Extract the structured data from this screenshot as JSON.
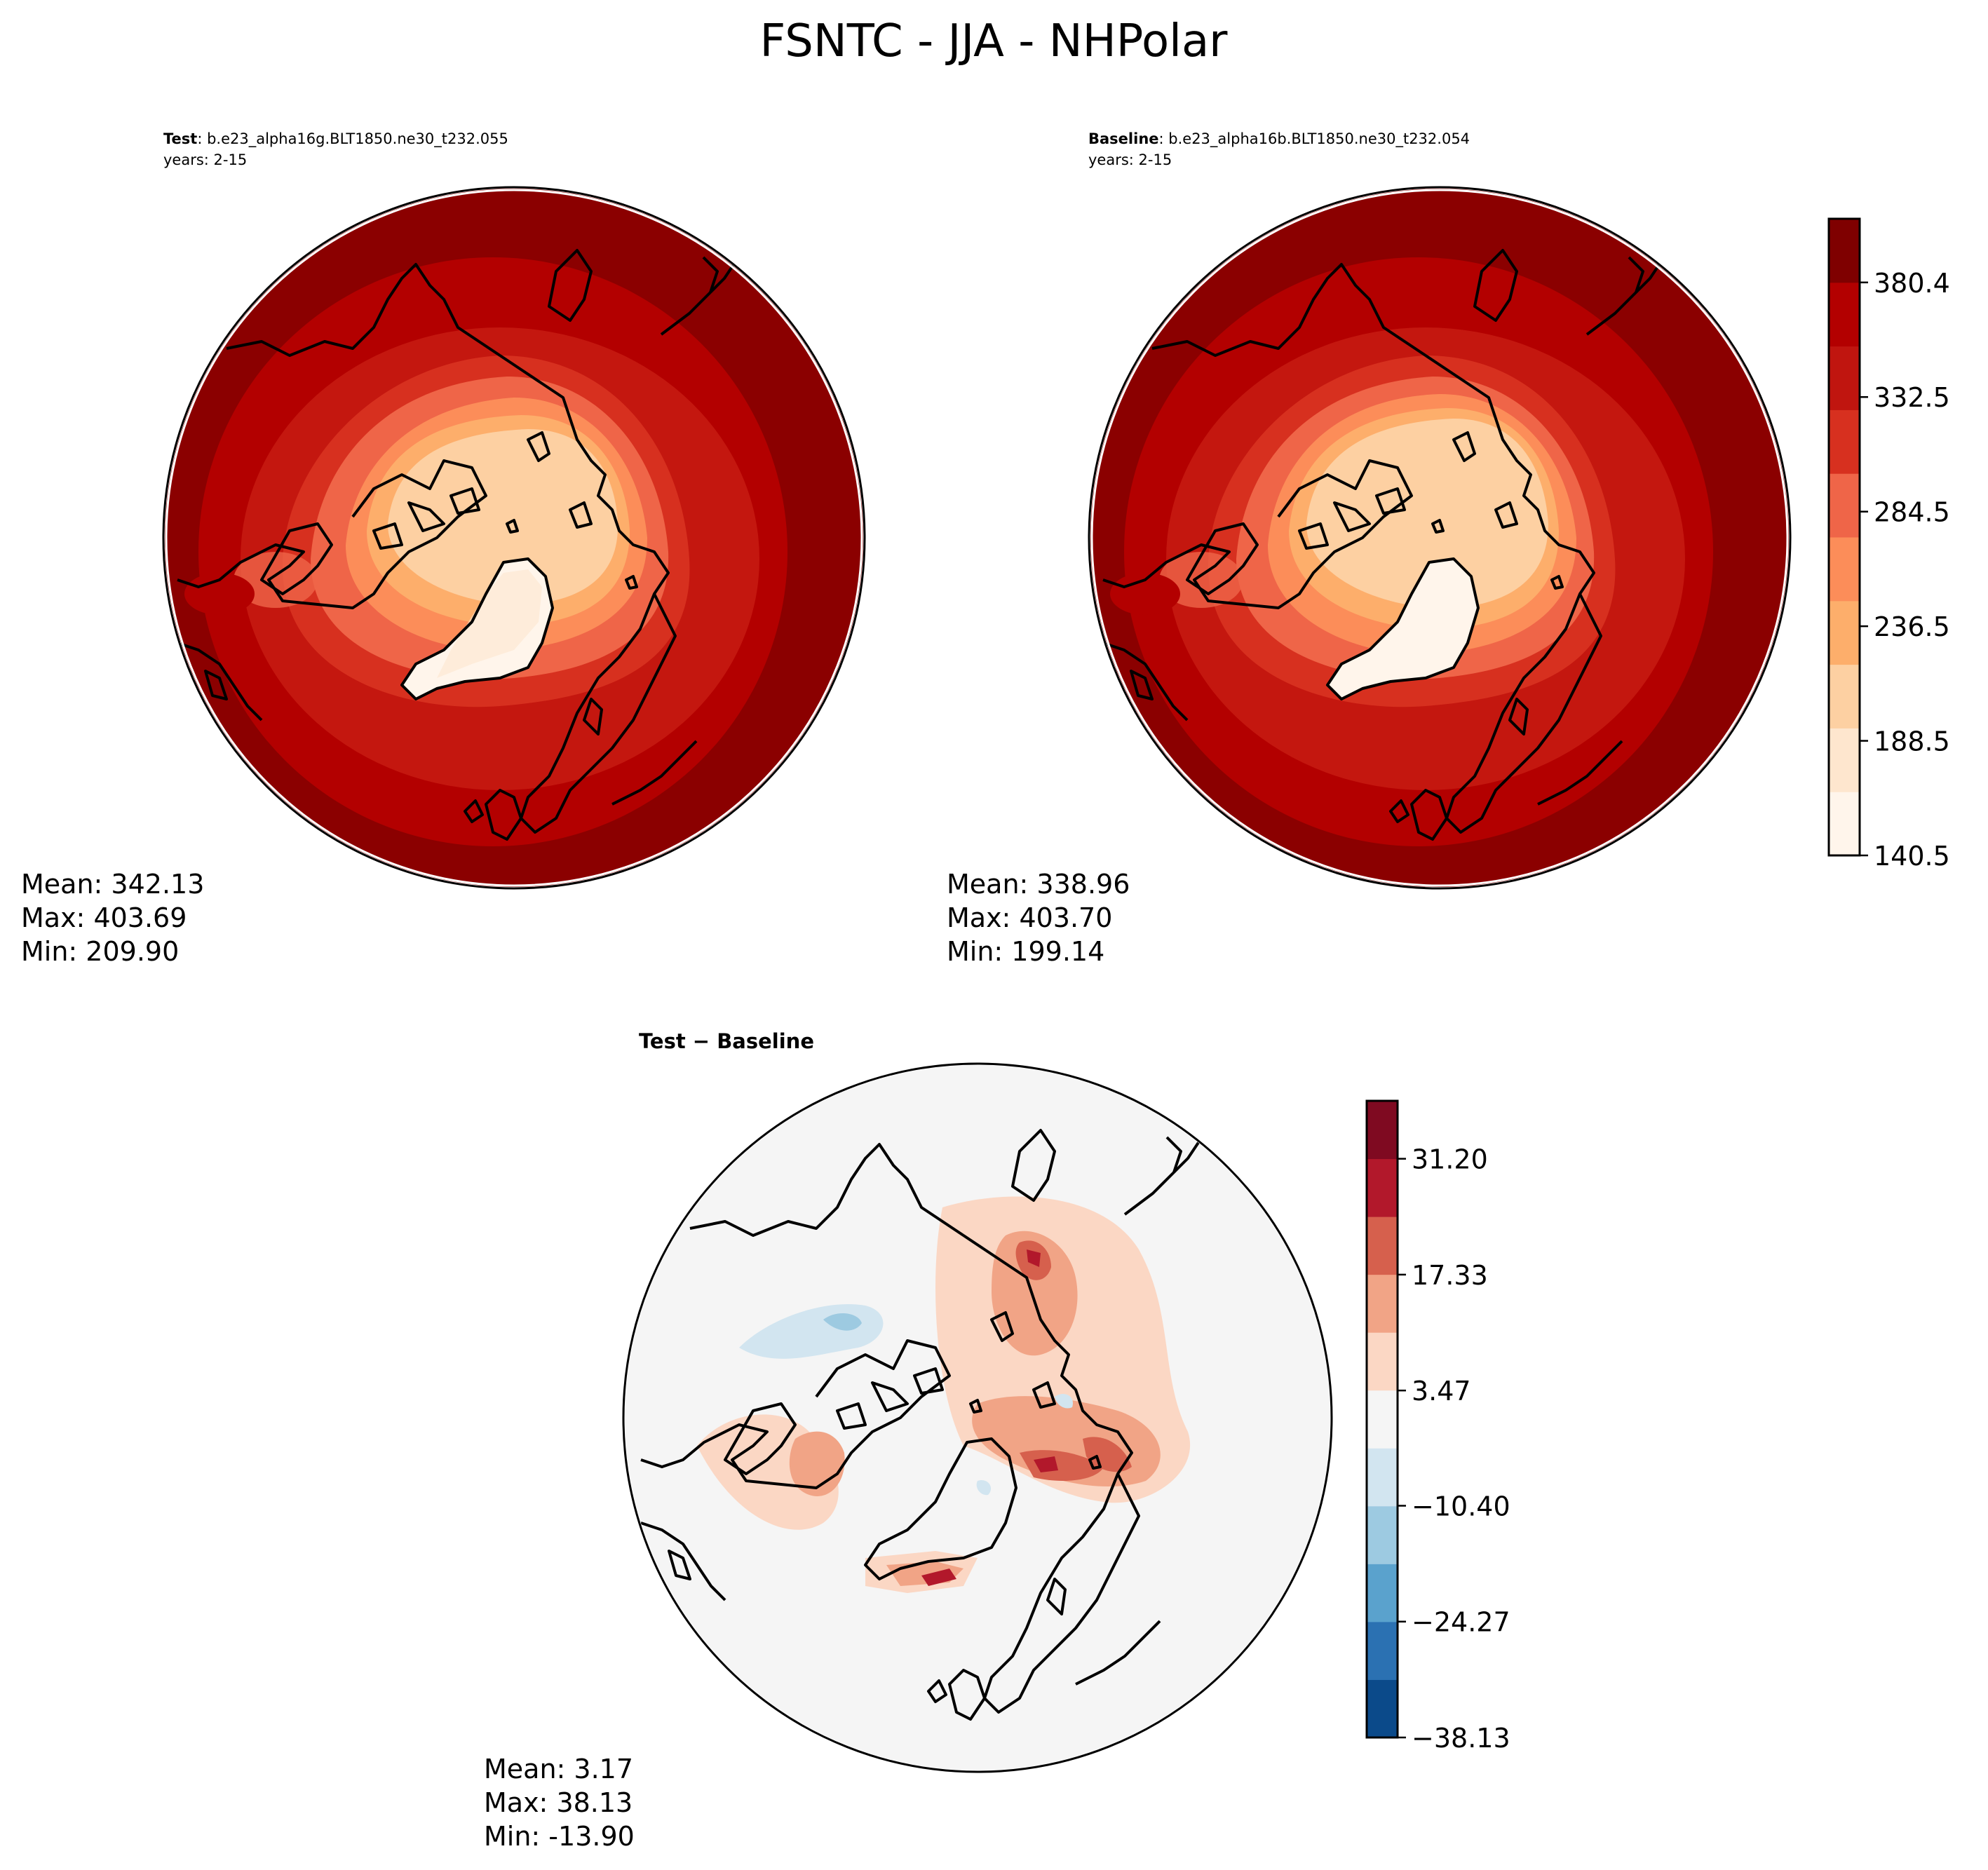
{
  "title": "FSNTC - JJA - NHPolar",
  "panels": [
    {
      "label_bold": "Test",
      "label_rest": ": b.e23_alpha16g.BLT1850.ne30_t232.055",
      "years": "years: 2-15",
      "stats": {
        "mean": "Mean: 342.13",
        "max": "Max: 403.69",
        "min": "Min: 209.90"
      }
    },
    {
      "label_bold": "Baseline",
      "label_rest": ": b.e23_alpha16b.BLT1850.ne30_t232.054",
      "years": "years: 2-15",
      "stats": {
        "mean": "Mean: 338.96",
        "max": "Max: 403.70",
        "min": "Min: 199.14"
      }
    },
    {
      "label": "Test − Baseline",
      "stats": {
        "mean": "Mean:  3.17",
        "max": "Max: 38.13",
        "min": "Min: -13.90"
      }
    }
  ],
  "colorbars": {
    "absolute": {
      "ticks": [
        "140.5",
        "188.5",
        "236.5",
        "284.5",
        "332.5",
        "380.4"
      ],
      "colors": [
        "#fff5eb",
        "#fee6ce",
        "#fdd0a2",
        "#fdae6b",
        "#fc8d59",
        "#ef6548",
        "#d7301f",
        "#c0150f",
        "#b30000",
        "#7f0000"
      ]
    },
    "difference": {
      "ticks": [
        "−38.13",
        "−24.27",
        "−10.40",
        "3.47",
        "17.33",
        "31.20"
      ],
      "colors": [
        "#0b4a8a",
        "#2b71b2",
        "#5aa2cd",
        "#9dcae1",
        "#d2e5f0",
        "#f5f5f5",
        "#fbd7c4",
        "#f1a486",
        "#d6604d",
        "#b2182b",
        "#7f0a21"
      ]
    }
  }
}
